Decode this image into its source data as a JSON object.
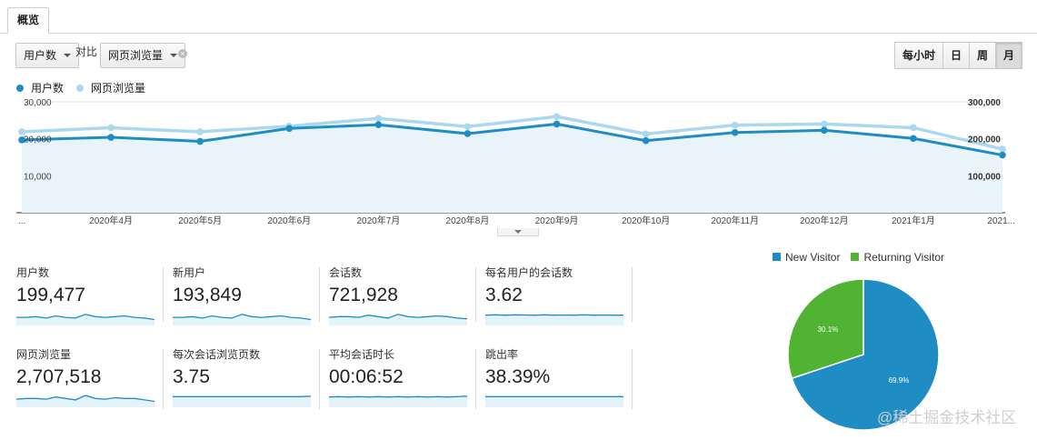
{
  "tab": {
    "label": "概览"
  },
  "controls": {
    "metric1": "用户数",
    "vs_label": "对比",
    "metric2": "网页浏览量",
    "clear_symbol": "×",
    "time_buttons": [
      "每小时",
      "日",
      "周",
      "月"
    ],
    "active_time": "月"
  },
  "legend": [
    {
      "label": "用户数",
      "color": "#1f8dc4"
    },
    {
      "label": "网页浏览量",
      "color": "#a9d8ef"
    }
  ],
  "chart_data": {
    "type": "line",
    "x": [
      "...",
      "2020年4月",
      "2020年5月",
      "2020年6月",
      "2020年7月",
      "2020年8月",
      "2020年9月",
      "2020年10月",
      "2020年11月",
      "2020年12月",
      "2021年1月",
      "2021..."
    ],
    "series": [
      {
        "name": "用户数",
        "axis": "left",
        "color": "#1f8dc4",
        "values": [
          19700,
          20400,
          19300,
          22800,
          23800,
          21400,
          24000,
          19500,
          21700,
          22300,
          20100,
          15600
        ]
      },
      {
        "name": "网页浏览量",
        "axis": "right",
        "color": "#a9d8ef",
        "values": [
          219000,
          230000,
          219000,
          234000,
          255000,
          233000,
          260000,
          213000,
          237000,
          240000,
          230000,
          172000
        ]
      }
    ],
    "yleft": {
      "ticks": [
        "30,000",
        "20,000",
        "10,000"
      ],
      "range": [
        0,
        30000
      ]
    },
    "yright": {
      "ticks": [
        "300,000",
        "200,000",
        "100,000"
      ],
      "range": [
        0,
        300000
      ]
    },
    "grid": true,
    "legend_position": "top-left"
  },
  "metrics": [
    {
      "label": "用户数",
      "value": "199,477",
      "spark": [
        0.55,
        0.55,
        0.6,
        0.5,
        0.65,
        0.55,
        0.5,
        0.75,
        0.6,
        0.55,
        0.6,
        0.65,
        0.55,
        0.5,
        0.4
      ]
    },
    {
      "label": "新用户",
      "value": "193,849",
      "spark": [
        0.55,
        0.55,
        0.6,
        0.5,
        0.65,
        0.55,
        0.5,
        0.75,
        0.6,
        0.55,
        0.6,
        0.65,
        0.55,
        0.5,
        0.4
      ]
    },
    {
      "label": "会话数",
      "value": "721,928",
      "spark": [
        0.55,
        0.6,
        0.6,
        0.55,
        0.7,
        0.6,
        0.5,
        0.75,
        0.6,
        0.55,
        0.6,
        0.65,
        0.6,
        0.5,
        0.45
      ]
    },
    {
      "label": "每名用户的会话数",
      "value": "3.62",
      "spark": [
        0.7,
        0.72,
        0.7,
        0.72,
        0.71,
        0.7,
        0.72,
        0.7,
        0.71,
        0.7,
        0.72,
        0.7,
        0.71,
        0.7,
        0.7
      ]
    },
    {
      "label": "网页浏览量",
      "value": "2,707,518",
      "spark": [
        0.55,
        0.6,
        0.6,
        0.55,
        0.7,
        0.6,
        0.5,
        0.8,
        0.6,
        0.55,
        0.65,
        0.6,
        0.6,
        0.5,
        0.4
      ]
    },
    {
      "label": "每次会话浏览页数",
      "value": "3.75",
      "spark": [
        0.72,
        0.72,
        0.72,
        0.72,
        0.72,
        0.72,
        0.72,
        0.72,
        0.72,
        0.72,
        0.72,
        0.72,
        0.72,
        0.72,
        0.75
      ]
    },
    {
      "label": "平均会话时长",
      "value": "00:06:52",
      "spark": [
        0.7,
        0.72,
        0.7,
        0.72,
        0.7,
        0.72,
        0.7,
        0.72,
        0.7,
        0.72,
        0.7,
        0.72,
        0.7,
        0.72,
        0.75
      ]
    },
    {
      "label": "跳出率",
      "value": "38.39%",
      "spark": [
        0.72,
        0.72,
        0.72,
        0.72,
        0.72,
        0.72,
        0.72,
        0.72,
        0.72,
        0.72,
        0.72,
        0.72,
        0.72,
        0.72,
        0.72
      ]
    }
  ],
  "pie": {
    "legend": [
      {
        "label": "New Visitor",
        "color": "#1f8dc4"
      },
      {
        "label": "Returning Visitor",
        "color": "#50b432"
      }
    ],
    "slices": [
      {
        "label": "New Visitor",
        "value": 69.9,
        "display": "69.9%",
        "color": "#1f8dc4"
      },
      {
        "label": "Returning Visitor",
        "value": 30.1,
        "display": "30.1%",
        "color": "#50b432"
      }
    ]
  },
  "watermark": "@稀土掘金技术社区"
}
